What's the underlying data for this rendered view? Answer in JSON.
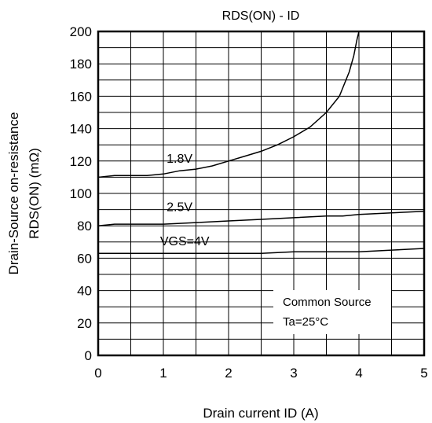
{
  "chart_data": {
    "type": "line",
    "title": "RDS(ON) - ID",
    "xlabel": "Drain current ID (A)",
    "ylabel_lines": [
      "Drain-Source on-resistance",
      "RDS(ON) (mΩ)"
    ],
    "xlim": [
      0,
      5
    ],
    "ylim": [
      0,
      200
    ],
    "x_ticks": [
      0,
      1,
      2,
      3,
      4,
      5
    ],
    "y_ticks": [
      0,
      20,
      40,
      60,
      80,
      100,
      120,
      140,
      160,
      180,
      200
    ],
    "minor_x_step": 0.5,
    "minor_y_step": 10,
    "grid": true,
    "annotation": [
      "Common Source",
      "Ta=25°C"
    ],
    "series": [
      {
        "name": "1.8V",
        "label_at": [
          1.05,
          119
        ],
        "x": [
          0,
          0.25,
          0.5,
          0.75,
          1.0,
          1.25,
          1.5,
          1.75,
          2.0,
          2.25,
          2.5,
          2.75,
          3.0,
          3.25,
          3.5,
          3.7,
          3.85,
          3.92,
          3.97,
          4.0
        ],
        "y": [
          110,
          111,
          111,
          111,
          112,
          114,
          115,
          117,
          120,
          123,
          126,
          130,
          135,
          141,
          150,
          160,
          175,
          185,
          195,
          200
        ]
      },
      {
        "name": "2.5V",
        "label_at": [
          1.05,
          89
        ],
        "x": [
          0,
          0.25,
          0.5,
          1.0,
          1.5,
          2.0,
          2.5,
          3.0,
          3.5,
          3.75,
          4.0,
          4.5,
          5.0
        ],
        "y": [
          80,
          81,
          81,
          81,
          82,
          83,
          84,
          85,
          86,
          86,
          87,
          88,
          89
        ]
      },
      {
        "name": "VGS=4V",
        "label_at": [
          0.95,
          68
        ],
        "x": [
          0,
          0.5,
          1.0,
          1.5,
          2.0,
          2.5,
          3.0,
          3.5,
          4.0,
          4.5,
          5.0
        ],
        "y": [
          63,
          63,
          63,
          63,
          63,
          63,
          64,
          64,
          64,
          65,
          66
        ]
      }
    ]
  }
}
